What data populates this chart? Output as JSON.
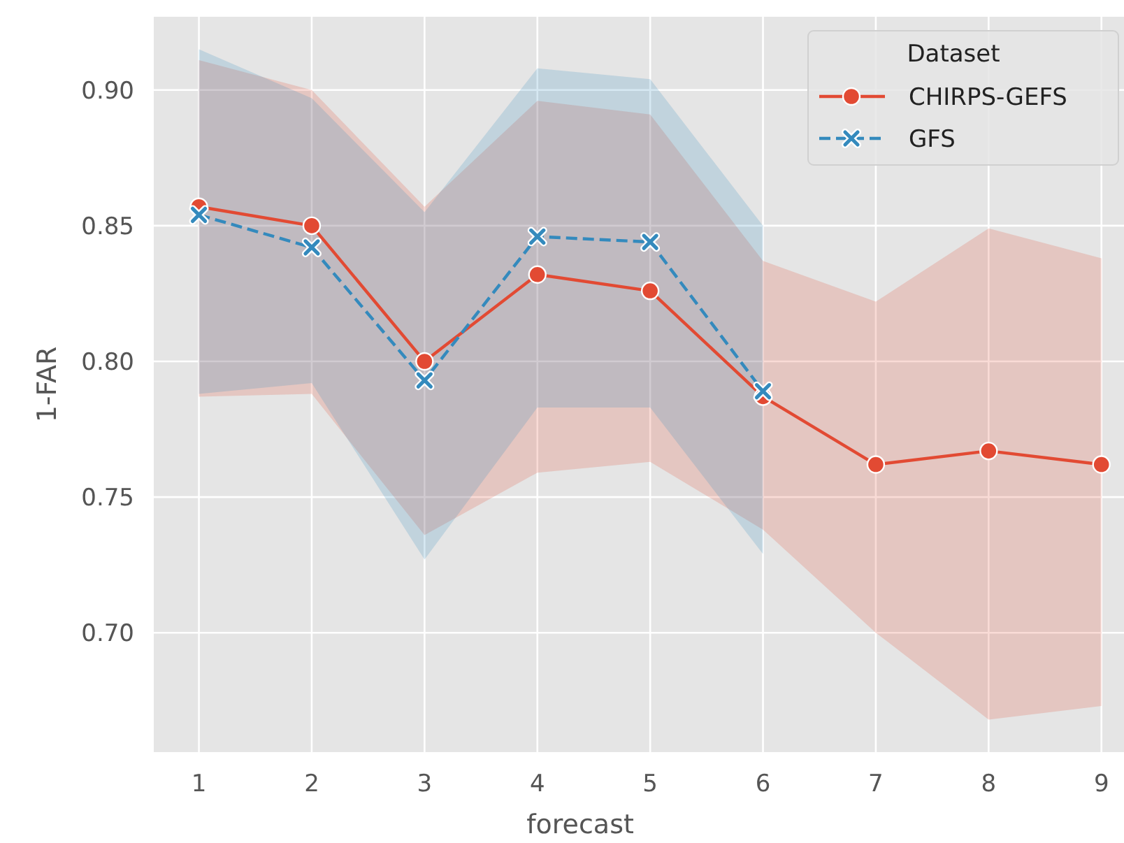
{
  "chart_data": {
    "type": "line",
    "xlabel": "forecast",
    "ylabel": "1-FAR",
    "legend_title": "Dataset",
    "legend": "top right",
    "grid": true,
    "x": [
      1,
      2,
      3,
      4,
      5,
      6,
      7,
      8,
      9
    ],
    "xlim": [
      0.6,
      9.2
    ],
    "xticks": [
      1,
      2,
      3,
      4,
      5,
      6,
      7,
      8,
      9
    ],
    "ylim": [
      0.656,
      0.927
    ],
    "yticks": [
      {
        "value": 0.7,
        "label": "0.70"
      },
      {
        "value": 0.75,
        "label": "0.75"
      },
      {
        "value": 0.8,
        "label": "0.80"
      },
      {
        "value": 0.85,
        "label": "0.85"
      },
      {
        "value": 0.9,
        "label": "0.90"
      }
    ],
    "series": [
      {
        "name": "CHIRPS-GEFS",
        "color": "#e24a33",
        "marker": "circle",
        "line_style": "solid",
        "values": [
          0.857,
          0.85,
          0.8,
          0.832,
          0.826,
          0.787,
          0.762,
          0.767,
          0.762
        ],
        "lower": [
          0.787,
          0.788,
          0.736,
          0.759,
          0.763,
          0.738,
          0.7,
          0.668,
          0.673
        ],
        "upper": [
          0.911,
          0.9,
          0.857,
          0.896,
          0.891,
          0.837,
          0.822,
          0.849,
          0.838
        ]
      },
      {
        "name": "GFS",
        "color": "#348abd",
        "marker": "cross",
        "line_style": "dashed",
        "x": [
          1,
          2,
          3,
          4,
          5,
          6
        ],
        "values": [
          0.854,
          0.842,
          0.793,
          0.846,
          0.844,
          0.789
        ],
        "lower": [
          0.788,
          0.792,
          0.727,
          0.783,
          0.783,
          0.729
        ],
        "upper": [
          0.915,
          0.897,
          0.855,
          0.908,
          0.904,
          0.85
        ]
      }
    ]
  }
}
